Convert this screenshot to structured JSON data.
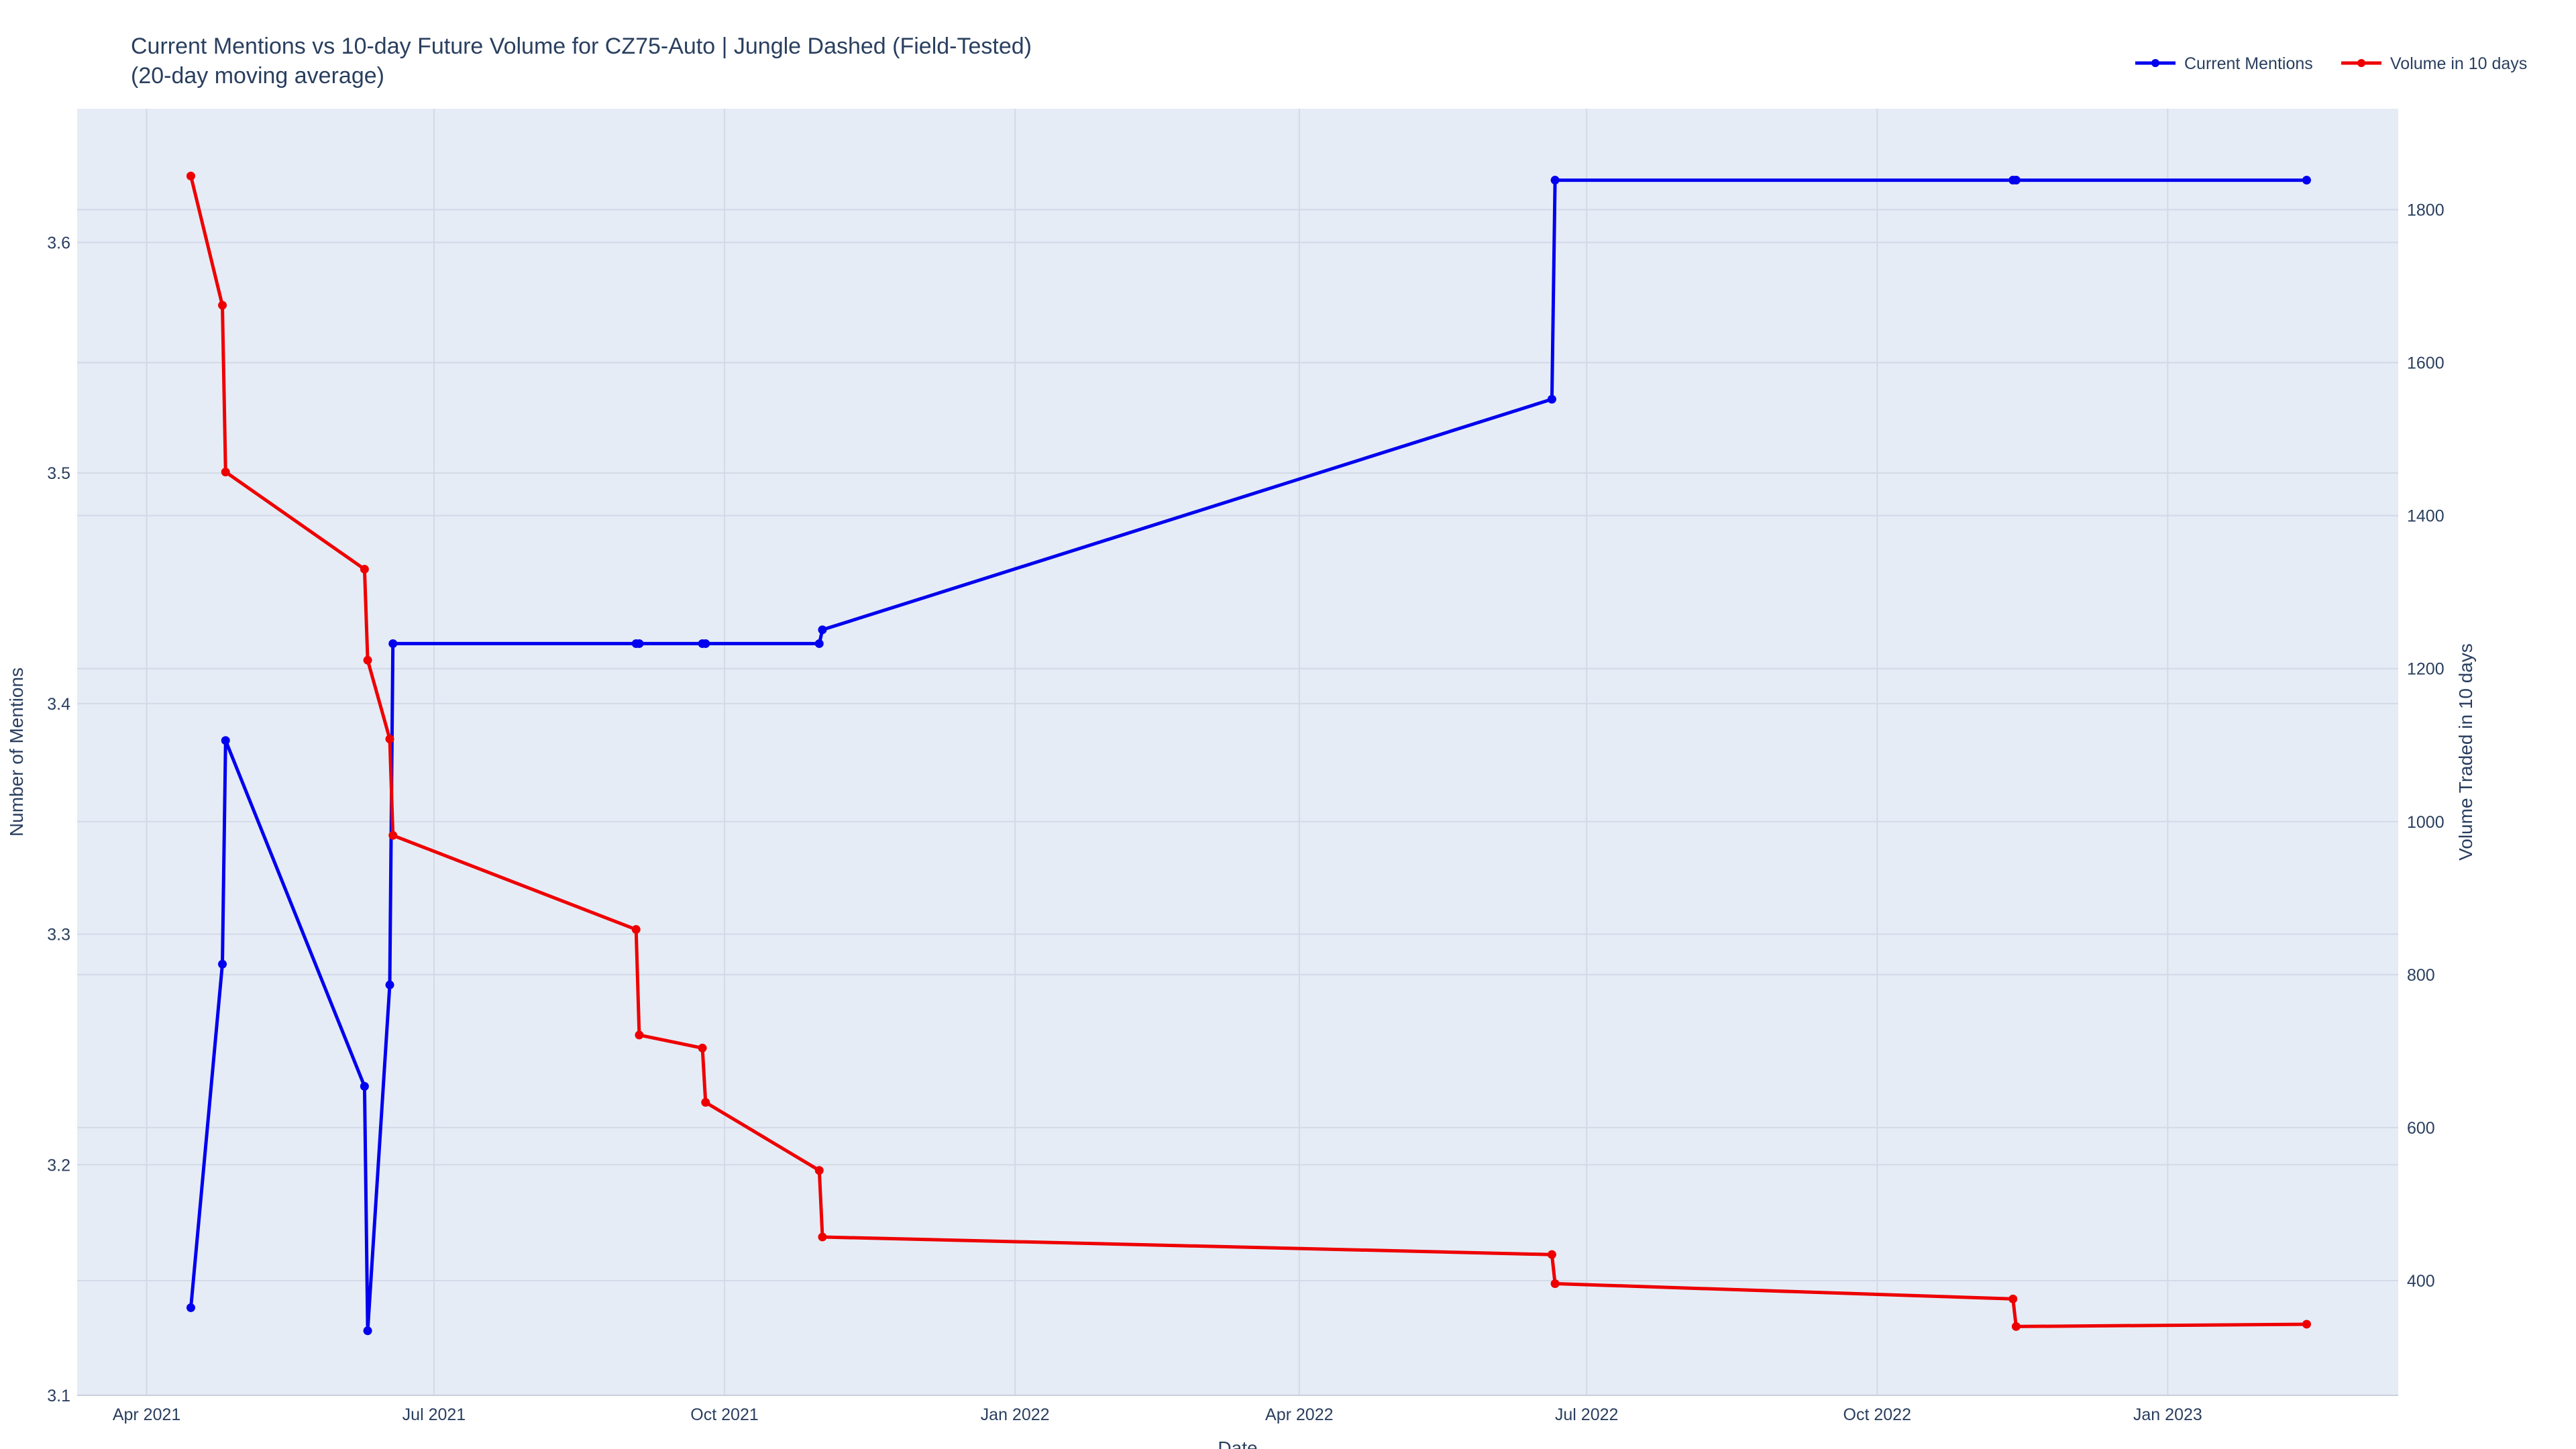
{
  "chart_data": {
    "type": "line",
    "title_line1": "Current Mentions vs 10-day Future Volume for CZ75-Auto | Jungle Dashed (Field-Tested)",
    "title_line2": "(20-day moving average)",
    "xlabel": "Date",
    "ylabel_left": "Number of Mentions",
    "ylabel_right": "Volume Traded in 10 days",
    "xlim": [
      "2021-03-10",
      "2023-03-15"
    ],
    "ylim_left": [
      3.1,
      3.658
    ],
    "ylim_right": [
      250,
      1932
    ],
    "x_ticks": [
      {
        "date": "2021-04-01",
        "label": "Apr 2021"
      },
      {
        "date": "2021-07-01",
        "label": "Jul 2021"
      },
      {
        "date": "2021-10-01",
        "label": "Oct 2021"
      },
      {
        "date": "2022-01-01",
        "label": "Jan 2022"
      },
      {
        "date": "2022-04-01",
        "label": "Apr 2022"
      },
      {
        "date": "2022-07-01",
        "label": "Jul 2022"
      },
      {
        "date": "2022-10-01",
        "label": "Oct 2022"
      },
      {
        "date": "2023-01-01",
        "label": "Jan 2023"
      }
    ],
    "y_ticks_left": [
      3.1,
      3.2,
      3.3,
      3.4,
      3.5,
      3.6
    ],
    "y_ticks_right": [
      400,
      600,
      800,
      1000,
      1200,
      1400,
      1600,
      1800
    ],
    "grid": true,
    "legend_position": "top-right",
    "series": [
      {
        "name": "Current Mentions",
        "axis": "left",
        "color": "#0000ee",
        "points": [
          [
            "2021-04-15",
            3.138
          ],
          [
            "2021-04-25",
            3.287
          ],
          [
            "2021-04-26",
            3.384
          ],
          [
            "2021-06-09",
            3.234
          ],
          [
            "2021-06-10",
            3.128
          ],
          [
            "2021-06-17",
            3.278
          ],
          [
            "2021-06-18",
            3.426
          ],
          [
            "2021-09-03",
            3.426
          ],
          [
            "2021-09-04",
            3.426
          ],
          [
            "2021-09-24",
            3.426
          ],
          [
            "2021-09-25",
            3.426
          ],
          [
            "2021-10-31",
            3.426
          ],
          [
            "2021-11-01",
            3.432
          ],
          [
            "2022-06-20",
            3.532
          ],
          [
            "2022-06-21",
            3.627
          ],
          [
            "2022-11-13",
            3.627
          ],
          [
            "2022-11-14",
            3.627
          ],
          [
            "2023-02-14",
            3.627
          ]
        ]
      },
      {
        "name": "Volume in 10 days",
        "axis": "right",
        "color": "#ee0000",
        "points": [
          [
            "2021-04-15",
            1844
          ],
          [
            "2021-04-25",
            1675
          ],
          [
            "2021-04-26",
            1457
          ],
          [
            "2021-06-09",
            1330
          ],
          [
            "2021-06-10",
            1211
          ],
          [
            "2021-06-17",
            1108
          ],
          [
            "2021-06-18",
            982
          ],
          [
            "2021-09-03",
            859
          ],
          [
            "2021-09-04",
            721
          ],
          [
            "2021-09-24",
            704
          ],
          [
            "2021-09-25",
            633
          ],
          [
            "2021-10-31",
            544
          ],
          [
            "2021-11-01",
            457
          ],
          [
            "2022-06-20",
            434
          ],
          [
            "2022-06-21",
            396
          ],
          [
            "2022-11-13",
            376
          ],
          [
            "2022-11-14",
            340
          ],
          [
            "2023-02-14",
            343
          ]
        ]
      }
    ]
  }
}
